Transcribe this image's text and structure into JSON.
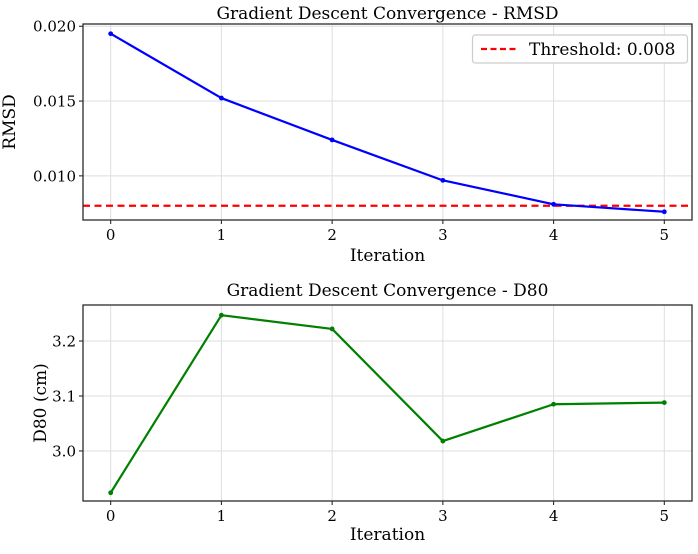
{
  "figure": {
    "background": "#ffffff",
    "text_color": "#000000",
    "grid_color": "#dedede",
    "spine_color": "#2b2b2b",
    "legend_border_color": "#cccccc",
    "legend_background": "#ffffff"
  },
  "chart_data": [
    {
      "type": "line",
      "title": "Gradient Descent Convergence - RMSD",
      "xlabel": "Iteration",
      "ylabel": "RMSD",
      "x": [
        0,
        1,
        2,
        3,
        4,
        5
      ],
      "series": [
        {
          "name": "RMSD",
          "color": "#0000ff",
          "marker": "circle",
          "values": [
            0.0195,
            0.0152,
            0.0124,
            0.0097,
            0.0081,
            0.0076
          ]
        }
      ],
      "threshold": {
        "value": 0.008,
        "color": "#ff0000",
        "style": "dashed",
        "label": "Threshold: 0.008"
      },
      "legend": {
        "position": "upper right",
        "entries": [
          {
            "label": "Threshold: 0.008",
            "color": "#ff0000",
            "dashed": true
          }
        ]
      },
      "xlim": [
        -0.25,
        5.25
      ],
      "ylim": [
        0.00705,
        0.02015
      ],
      "xticks": {
        "values": [
          0,
          1,
          2,
          3,
          4,
          5
        ],
        "labels": [
          "0",
          "1",
          "2",
          "3",
          "4",
          "5"
        ]
      },
      "yticks": {
        "values": [
          0.01,
          0.015,
          0.02
        ],
        "labels": [
          "0.010",
          "0.015",
          "0.020"
        ]
      },
      "grid": true
    },
    {
      "type": "line",
      "title": "Gradient Descent Convergence - D80",
      "xlabel": "Iteration",
      "ylabel": "D80 (cm)",
      "x": [
        0,
        1,
        2,
        3,
        4,
        5
      ],
      "series": [
        {
          "name": "D80",
          "color": "#008000",
          "marker": "circle",
          "values": [
            2.924,
            3.247,
            3.222,
            3.018,
            3.085,
            3.088
          ]
        }
      ],
      "xlim": [
        -0.25,
        5.25
      ],
      "ylim": [
        2.909,
        3.2655
      ],
      "xticks": {
        "values": [
          0,
          1,
          2,
          3,
          4,
          5
        ],
        "labels": [
          "0",
          "1",
          "2",
          "3",
          "4",
          "5"
        ]
      },
      "yticks": {
        "values": [
          3.0,
          3.1,
          3.2
        ],
        "labels": [
          "3.0",
          "3.1",
          "3.2"
        ]
      },
      "grid": true
    }
  ]
}
